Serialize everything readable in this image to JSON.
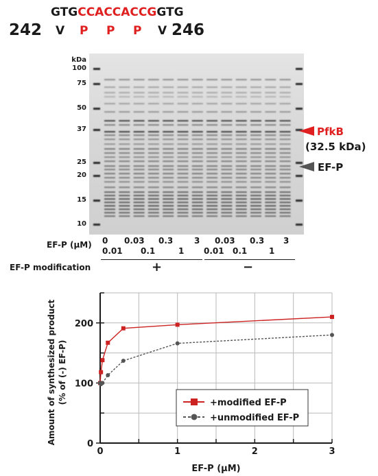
{
  "sequence": {
    "prefix": "GTG",
    "highlight": "CCACCACCG",
    "suffix": "GTG",
    "start_pos": "242",
    "end_pos": "246",
    "residues": [
      "V",
      "P",
      "P",
      "P",
      "V"
    ],
    "colors": {
      "highlight": "#e02020",
      "normal": "#1a1a1a"
    }
  },
  "gel": {
    "unit_label": "kDa",
    "markers": [
      "100",
      "75",
      "50",
      "37",
      "25",
      "20",
      "15",
      "10"
    ],
    "bands": {
      "pfkb_label": "PfkB",
      "pfkb_size": "(32.5 kDa)",
      "efp_label": "EF-P",
      "pfkb_color": "#e02020",
      "efp_color": "#555555"
    },
    "conc_label": "EF-P (µM)",
    "modification_label": "EF-P modification",
    "lanes_top": [
      "0",
      "0.03",
      "0.3",
      "3",
      "0.03",
      "0.3",
      "3"
    ],
    "lanes_bottom": [
      "0.01",
      "0.1",
      "1",
      "0.01",
      "0.1",
      "1"
    ],
    "group_plus": "+",
    "group_minus": "−"
  },
  "chart_data": {
    "type": "line",
    "xlabel": "EF-P (µM)",
    "ylabel_line1": "Amount of synthesized product",
    "ylabel_line2": "(% of (-) EF-P)",
    "xlim": [
      0,
      3
    ],
    "ylim": [
      0,
      250
    ],
    "x_ticks": [
      "0",
      "1",
      "2",
      "3"
    ],
    "y_ticks": [
      "0",
      "100",
      "200"
    ],
    "grid": true,
    "legend_position": "bottom-right",
    "series": [
      {
        "name": "+modified EF-P",
        "color": "#cc2222",
        "style": "solid",
        "marker": "square",
        "x": [
          0,
          0.01,
          0.03,
          0.1,
          0.3,
          1,
          3
        ],
        "y": [
          100,
          118,
          138,
          167,
          191,
          197,
          210
        ]
      },
      {
        "name": "+unmodified EF-P",
        "color": "#555555",
        "style": "dashed",
        "marker": "circle",
        "x": [
          0,
          0.01,
          0.03,
          0.1,
          0.3,
          1,
          3
        ],
        "y": [
          100,
          98,
          100,
          113,
          137,
          166,
          180
        ]
      }
    ]
  }
}
